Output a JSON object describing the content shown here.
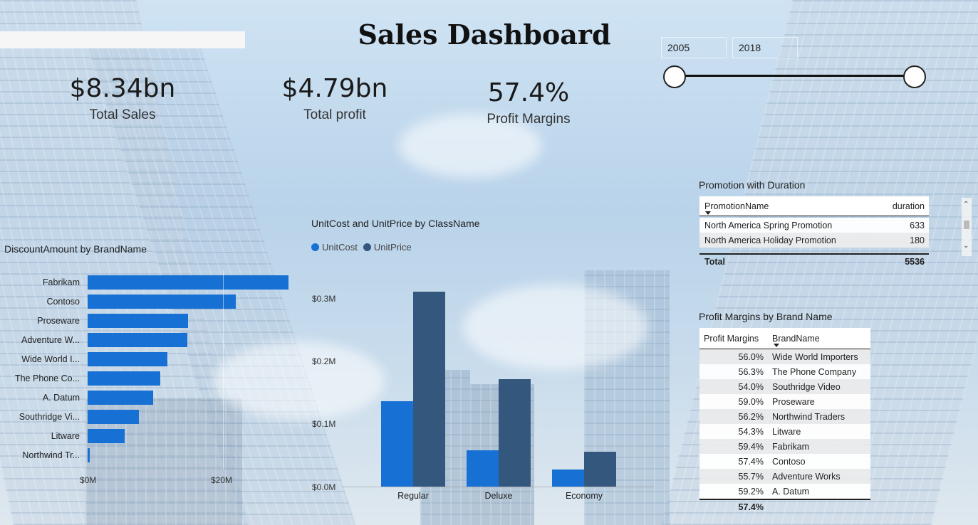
{
  "dashboard": {
    "title": "Sales Dashboard"
  },
  "kpis": [
    {
      "value": "$8.34bn",
      "label": "Total Sales"
    },
    {
      "value": "$4.79bn",
      "label": "Total profit"
    },
    {
      "value": "57.4%",
      "label": "Profit Margins"
    }
  ],
  "year_slider": {
    "start": "2005",
    "end": "2018"
  },
  "discount_chart": {
    "title": "DiscountAmount by BrandName",
    "x_ticks": [
      "$0M",
      "$20M"
    ]
  },
  "column_chart": {
    "title": "UnitCost and UnitPrice by ClassName",
    "y_ticks": [
      "$0.3M",
      "$0.2M",
      "$0.1M",
      "$0.0M"
    ]
  },
  "chart_data": [
    {
      "type": "bar",
      "orientation": "horizontal",
      "title": "DiscountAmount by BrandName",
      "categories": [
        "Fabrikam",
        "Contoso",
        "Proseware",
        "Adventure W...",
        "Wide World I...",
        "The Phone Co...",
        "A. Datum",
        "Southridge Vi...",
        "Litware",
        "Northwind Tr..."
      ],
      "values": [
        29.7,
        21.9,
        14.8,
        14.7,
        11.8,
        10.7,
        9.7,
        7.6,
        5.5,
        0.3
      ],
      "xlabel": "",
      "ylabel": "",
      "x_unit": "$M",
      "xlim": [
        0,
        30
      ]
    },
    {
      "type": "bar",
      "title": "UnitCost and UnitPrice by ClassName",
      "categories": [
        "Regular",
        "Deluxe",
        "Economy"
      ],
      "series": [
        {
          "name": "UnitCost",
          "values": [
            0.136,
            0.058,
            0.027
          ],
          "color": "#1770d3"
        },
        {
          "name": "UnitPrice",
          "values": [
            0.31,
            0.171,
            0.055
          ],
          "color": "#34577d"
        }
      ],
      "y_unit": "$M",
      "ylim": [
        0,
        0.33
      ],
      "legend": "top-left"
    }
  ],
  "promo_table": {
    "title": "Promotion with Duration",
    "headers": [
      "PromotionName",
      "duration"
    ],
    "rows": [
      [
        "North America Spring Promotion",
        "633"
      ],
      [
        "North America Holiday Promotion",
        "180"
      ]
    ],
    "total_label": "Total",
    "total_value": "5536"
  },
  "margins_table": {
    "title": "Profit Margins by Brand Name",
    "headers": [
      "Profit Margins",
      "BrandName"
    ],
    "rows": [
      [
        "56.0%",
        "Wide World Importers"
      ],
      [
        "56.3%",
        "The Phone Company"
      ],
      [
        "54.0%",
        "Southridge Video"
      ],
      [
        "59.0%",
        "Proseware"
      ],
      [
        "56.2%",
        "Northwind Traders"
      ],
      [
        "54.3%",
        "Litware"
      ],
      [
        "59.4%",
        "Fabrikam"
      ],
      [
        "57.4%",
        "Contoso"
      ],
      [
        "55.7%",
        "Adventure Works"
      ],
      [
        "59.2%",
        "A. Datum"
      ]
    ],
    "total_value": "57.4%"
  },
  "colors": {
    "unit_cost": "#1770d3",
    "unit_price": "#34577d",
    "discount_bar": "#1770d3"
  }
}
